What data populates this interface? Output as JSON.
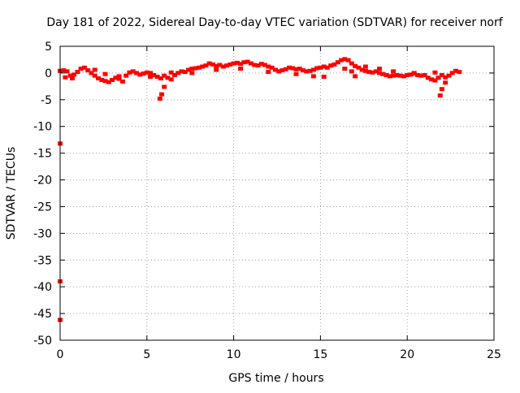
{
  "chart_data": {
    "type": "scatter",
    "title": "Day 181 of 2022, Sidereal Day-to-day VTEC variation (SDTVAR) for receiver norf",
    "xlabel": "GPS time / hours",
    "ylabel": "SDTVAR / TECUs",
    "xlim": [
      0,
      25
    ],
    "ylim": [
      -50,
      5
    ],
    "xticks": [
      0,
      5,
      10,
      15,
      20,
      25
    ],
    "yticks": [
      5,
      0,
      -5,
      -10,
      -15,
      -20,
      -25,
      -30,
      -35,
      -40,
      -45,
      -50
    ],
    "grid": true,
    "series_color": "#ff0000",
    "series": [
      {
        "name": "SDTVAR",
        "points": [
          [
            0.0,
            0.4
          ],
          [
            0.2,
            0.5
          ],
          [
            0.4,
            0.3
          ],
          [
            0.6,
            -0.5
          ],
          [
            0.8,
            -0.3
          ],
          [
            1.0,
            0.2
          ],
          [
            1.2,
            0.8
          ],
          [
            1.4,
            1.0
          ],
          [
            1.6,
            0.5
          ],
          [
            1.8,
            0.0
          ],
          [
            2.0,
            -0.5
          ],
          [
            2.2,
            -1.0
          ],
          [
            2.4,
            -1.3
          ],
          [
            2.6,
            -1.5
          ],
          [
            2.8,
            -1.7
          ],
          [
            3.0,
            -1.3
          ],
          [
            3.2,
            -0.9
          ],
          [
            3.4,
            -1.1
          ],
          [
            3.6,
            -1.6
          ],
          [
            3.8,
            -0.5
          ],
          [
            4.0,
            0.1
          ],
          [
            4.2,
            0.3
          ],
          [
            4.4,
            0.0
          ],
          [
            4.6,
            -0.3
          ],
          [
            4.8,
            -0.1
          ],
          [
            5.0,
            0.1
          ],
          [
            5.2,
            0.0
          ],
          [
            5.4,
            -0.4
          ],
          [
            5.6,
            -0.7
          ],
          [
            5.8,
            -1.0
          ],
          [
            6.0,
            -0.5
          ],
          [
            6.2,
            -0.9
          ],
          [
            6.4,
            -1.2
          ],
          [
            6.6,
            -0.4
          ],
          [
            6.8,
            0.0
          ],
          [
            7.0,
            0.3
          ],
          [
            7.2,
            0.2
          ],
          [
            7.4,
            0.6
          ],
          [
            7.6,
            0.8
          ],
          [
            7.8,
            0.9
          ],
          [
            8.0,
            1.0
          ],
          [
            8.2,
            1.2
          ],
          [
            8.4,
            1.4
          ],
          [
            8.6,
            1.8
          ],
          [
            8.8,
            1.6
          ],
          [
            9.0,
            1.3
          ],
          [
            9.2,
            1.5
          ],
          [
            9.4,
            1.2
          ],
          [
            9.6,
            1.4
          ],
          [
            9.8,
            1.6
          ],
          [
            10.0,
            1.8
          ],
          [
            10.2,
            1.9
          ],
          [
            10.4,
            1.7
          ],
          [
            10.6,
            2.0
          ],
          [
            10.8,
            2.1
          ],
          [
            11.0,
            1.8
          ],
          [
            11.2,
            1.5
          ],
          [
            11.4,
            1.4
          ],
          [
            11.6,
            1.7
          ],
          [
            11.8,
            1.5
          ],
          [
            12.0,
            1.2
          ],
          [
            12.2,
            1.0
          ],
          [
            12.4,
            0.6
          ],
          [
            12.6,
            0.3
          ],
          [
            12.8,
            0.5
          ],
          [
            13.0,
            0.7
          ],
          [
            13.2,
            1.0
          ],
          [
            13.4,
            0.9
          ],
          [
            13.6,
            0.7
          ],
          [
            13.8,
            0.8
          ],
          [
            14.0,
            0.5
          ],
          [
            14.2,
            0.3
          ],
          [
            14.4,
            0.4
          ],
          [
            14.6,
            0.6
          ],
          [
            14.8,
            0.9
          ],
          [
            15.0,
            1.0
          ],
          [
            15.2,
            1.2
          ],
          [
            15.4,
            1.0
          ],
          [
            15.6,
            1.4
          ],
          [
            15.8,
            1.6
          ],
          [
            16.0,
            2.0
          ],
          [
            16.2,
            2.4
          ],
          [
            16.4,
            2.6
          ],
          [
            16.6,
            2.4
          ],
          [
            16.8,
            1.8
          ],
          [
            17.0,
            1.3
          ],
          [
            17.2,
            1.0
          ],
          [
            17.4,
            0.6
          ],
          [
            17.6,
            0.4
          ],
          [
            17.8,
            0.2
          ],
          [
            18.0,
            0.1
          ],
          [
            18.2,
            0.3
          ],
          [
            18.4,
            0.0
          ],
          [
            18.6,
            -0.2
          ],
          [
            18.8,
            -0.4
          ],
          [
            19.0,
            -0.6
          ],
          [
            19.2,
            -0.5
          ],
          [
            19.4,
            -0.4
          ],
          [
            19.6,
            -0.5
          ],
          [
            19.8,
            -0.6
          ],
          [
            20.0,
            -0.4
          ],
          [
            20.2,
            -0.3
          ],
          [
            20.4,
            -0.1
          ],
          [
            20.6,
            -0.4
          ],
          [
            20.8,
            -0.5
          ],
          [
            21.0,
            -0.4
          ],
          [
            21.2,
            -0.9
          ],
          [
            21.4,
            -1.2
          ],
          [
            21.6,
            -1.4
          ],
          [
            21.8,
            -0.9
          ],
          [
            22.0,
            -0.4
          ],
          [
            22.2,
            -0.8
          ],
          [
            22.4,
            -0.5
          ],
          [
            22.6,
            0.0
          ],
          [
            22.8,
            0.4
          ],
          [
            23.0,
            0.2
          ],
          [
            2.0,
            0.6
          ],
          [
            2.6,
            -0.2
          ],
          [
            3.4,
            -0.6
          ],
          [
            5.2,
            -0.7
          ],
          [
            6.4,
            0.1
          ],
          [
            7.6,
            0.0
          ],
          [
            9.0,
            0.6
          ],
          [
            10.4,
            0.8
          ],
          [
            12.0,
            0.2
          ],
          [
            13.6,
            -0.2
          ],
          [
            14.6,
            -0.6
          ],
          [
            15.2,
            -0.7
          ],
          [
            16.8,
            0.3
          ],
          [
            17.6,
            1.2
          ],
          [
            18.4,
            0.8
          ],
          [
            19.2,
            0.3
          ],
          [
            20.4,
            0.0
          ],
          [
            21.6,
            0.1
          ],
          [
            22.2,
            -1.8
          ],
          [
            22.0,
            -3.0
          ],
          [
            21.9,
            -4.2
          ],
          [
            6.0,
            -2.6
          ],
          [
            5.85,
            -4.0
          ],
          [
            5.75,
            -4.8
          ],
          [
            0.3,
            -0.8
          ],
          [
            0.7,
            -1.0
          ],
          [
            16.4,
            0.8
          ],
          [
            17.0,
            -0.6
          ],
          [
            0.0,
            -13.2
          ],
          [
            0.0,
            -39.0
          ],
          [
            0.0,
            -46.2
          ]
        ]
      }
    ]
  }
}
